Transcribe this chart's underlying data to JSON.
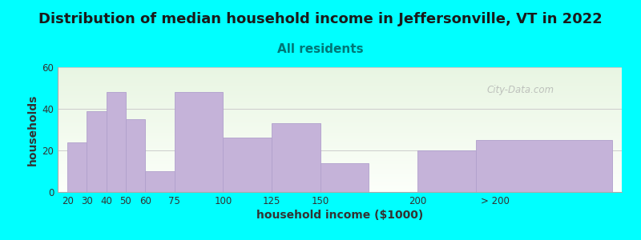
{
  "title": "Distribution of median household income in Jeffersonville, VT in 2022",
  "subtitle": "All residents",
  "xlabel": "household income ($1000)",
  "ylabel": "households",
  "background_color": "#00FFFF",
  "plot_bg_top": "#e8f5e2",
  "plot_bg_bottom": "#f8fff8",
  "bar_color": "#c5b3d9",
  "bar_edge_color": "#b0a0cc",
  "title_fontsize": 13,
  "subtitle_fontsize": 11,
  "xlabel_fontsize": 10,
  "ylabel_fontsize": 10,
  "watermark": "City-Data.com",
  "bar_values": [
    24,
    39,
    48,
    35,
    10,
    48,
    26,
    33,
    14,
    20,
    25
  ],
  "bar_left": [
    20,
    30,
    40,
    50,
    60,
    75,
    100,
    125,
    150,
    200,
    230
  ],
  "bar_widths": [
    10,
    10,
    10,
    10,
    15,
    25,
    25,
    25,
    25,
    30,
    70
  ],
  "ylim": [
    0,
    60
  ],
  "yticks": [
    0,
    20,
    40,
    60
  ],
  "xtick_labels": [
    "20",
    "30",
    "40",
    "50",
    "60",
    "75",
    "100",
    "125",
    "150",
    "200",
    "> 200"
  ],
  "xtick_positions": [
    20,
    30,
    40,
    50,
    60,
    75,
    100,
    125,
    150,
    200,
    240
  ],
  "xlim_left": 15,
  "xlim_right": 305,
  "title_color": "#1a1a1a",
  "subtitle_color": "#007777",
  "ylabel_color": "#333333",
  "xlabel_color": "#333333",
  "grid_color": "#cccccc",
  "spine_color": "#aaaaaa"
}
